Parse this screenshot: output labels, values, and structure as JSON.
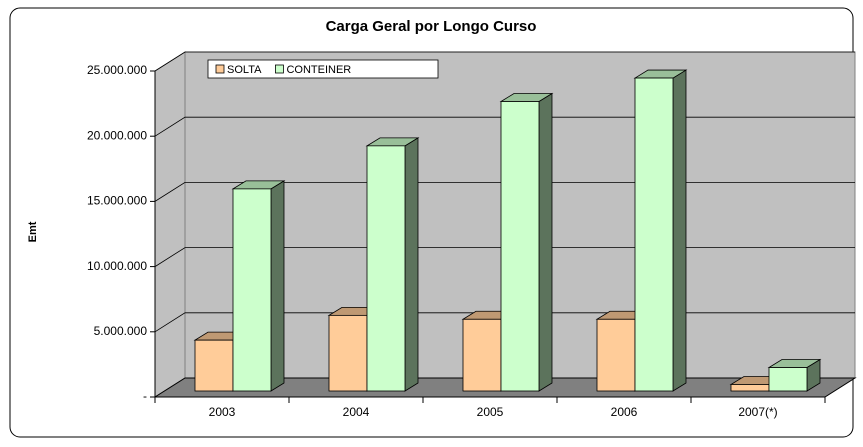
{
  "chart_data": {
    "type": "bar3d",
    "title": "Carga Geral por Longo Curso",
    "ylabel": "Emt",
    "categories": [
      "2003",
      "2004",
      "2005",
      "2006",
      "2007(*)"
    ],
    "series": [
      {
        "name": "SOLTA",
        "color": "#ffcc99",
        "values": [
          3900000,
          5800000,
          5500000,
          5500000,
          500000
        ]
      },
      {
        "name": "CONTEINER",
        "color": "#ccffcc",
        "values": [
          15500000,
          18800000,
          22200000,
          24000000,
          1800000
        ]
      }
    ],
    "ylim": [
      0,
      25000000
    ],
    "yticks": [
      {
        "value": 0,
        "label": "-"
      },
      {
        "value": 5000000,
        "label": "5.000.000"
      },
      {
        "value": 10000000,
        "label": "10.000.000"
      },
      {
        "value": 15000000,
        "label": "15.000.000"
      },
      {
        "value": 20000000,
        "label": "20.000.000"
      },
      {
        "value": 25000000,
        "label": "25.000.000"
      }
    ],
    "grid": true,
    "legend": "top-left"
  }
}
